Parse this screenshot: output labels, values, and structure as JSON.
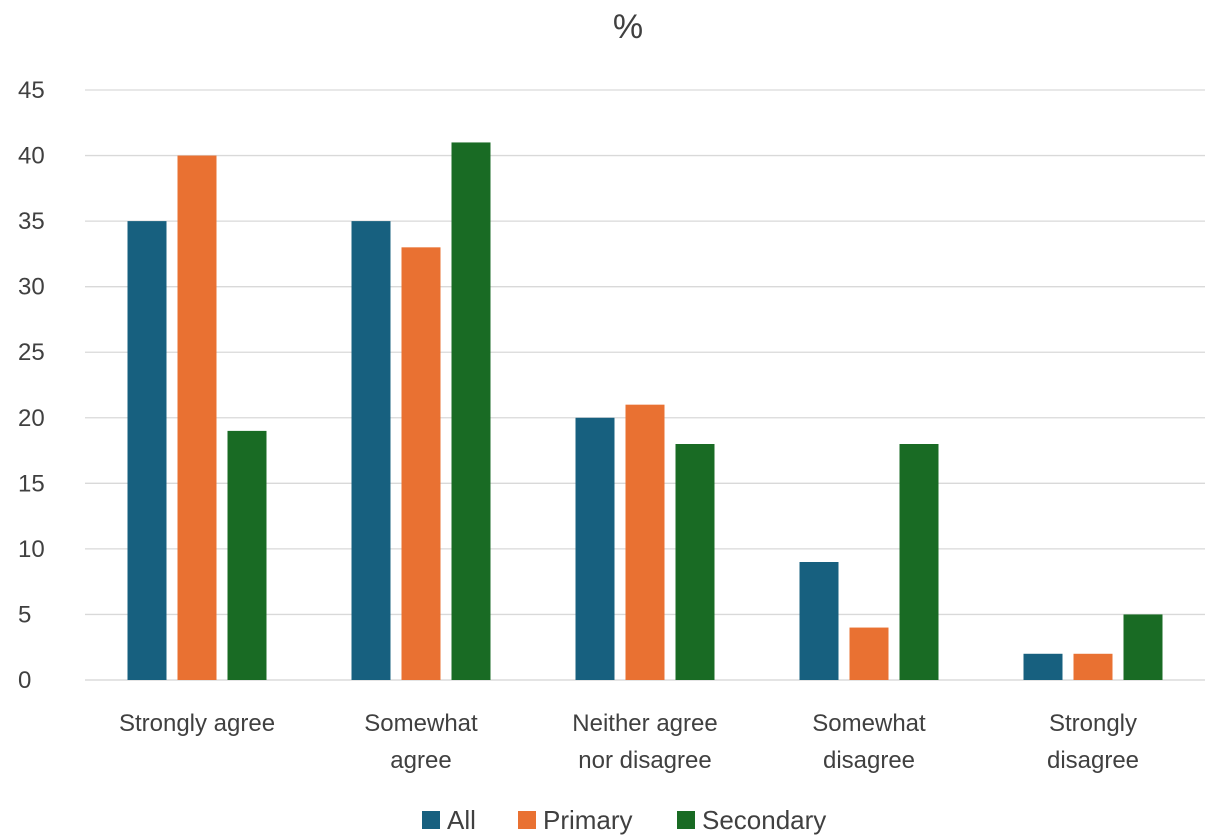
{
  "chart_data": {
    "type": "bar",
    "title": "%",
    "xlabel": "",
    "ylabel": "",
    "ylim": [
      0,
      45
    ],
    "yticks": [
      0,
      5,
      10,
      15,
      20,
      25,
      30,
      35,
      40,
      45
    ],
    "grid": true,
    "legend_position": "bottom",
    "categories": [
      [
        "Strongly agree"
      ],
      [
        "Somewhat",
        "agree"
      ],
      [
        "Neither agree",
        "nor disagree"
      ],
      [
        "Somewhat",
        "disagree"
      ],
      [
        "Strongly",
        "disagree"
      ]
    ],
    "series": [
      {
        "name": "All",
        "color": "#17607f",
        "values": [
          35,
          35,
          20,
          9,
          2
        ]
      },
      {
        "name": "Primary",
        "color": "#e97132",
        "values": [
          40,
          33,
          21,
          4,
          2
        ]
      },
      {
        "name": "Secondary",
        "color": "#196b24",
        "values": [
          19,
          41,
          18,
          18,
          5
        ]
      }
    ]
  }
}
